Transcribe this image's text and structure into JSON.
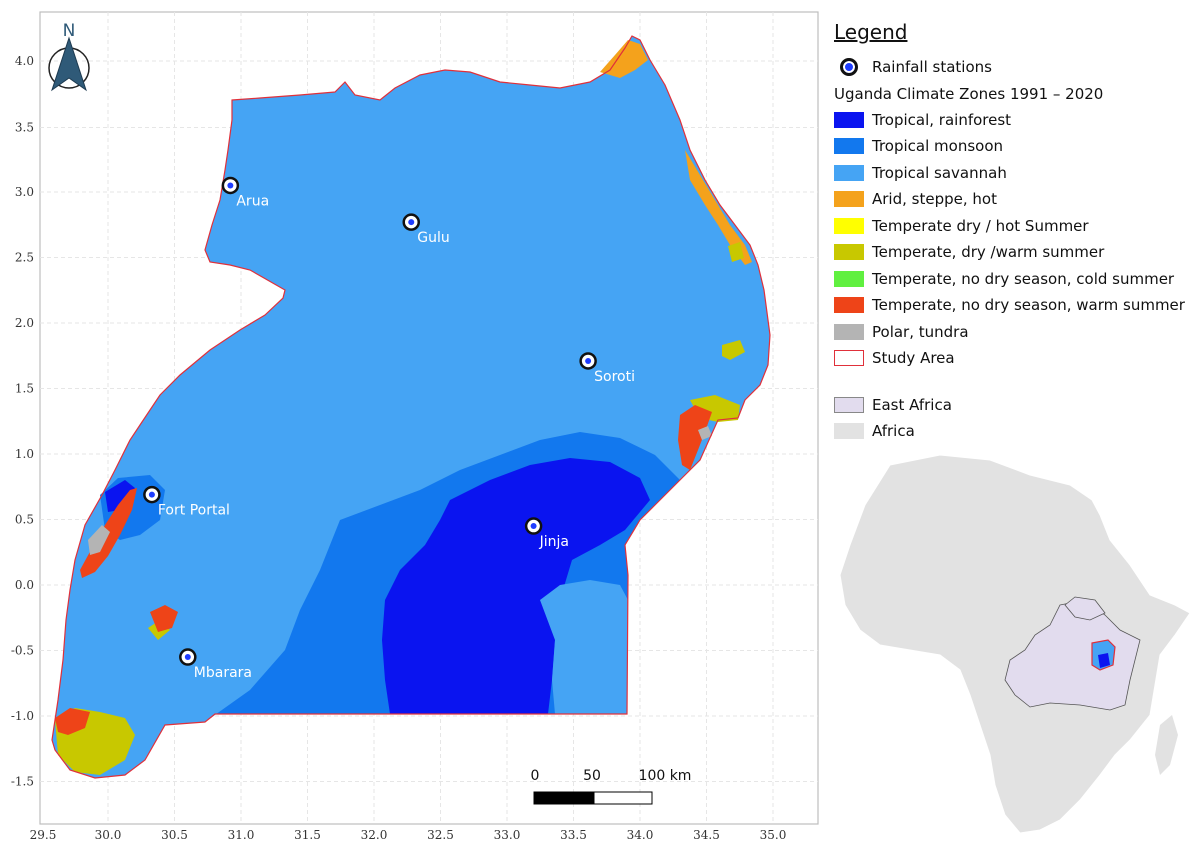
{
  "north_arrow": {
    "label": "N"
  },
  "x_axis": {
    "ticks": [
      "29.5",
      "30.0",
      "30.5",
      "31.0",
      "31.5",
      "32.0",
      "32.5",
      "33.0",
      "33.5",
      "34.0",
      "34.5",
      "35.0"
    ]
  },
  "y_axis": {
    "ticks": [
      "4.0",
      "3.5",
      "3.0",
      "2.5",
      "2.0",
      "1.5",
      "1.0",
      "0.5",
      "0.0",
      "-0.5",
      "-1.0",
      "-1.5"
    ]
  },
  "stations": [
    {
      "name": "Arua",
      "lon": 30.92,
      "lat": 3.05
    },
    {
      "name": "Gulu",
      "lon": 32.28,
      "lat": 2.77
    },
    {
      "name": "Soroti",
      "lon": 33.61,
      "lat": 1.71
    },
    {
      "name": "Fort Portal",
      "lon": 30.33,
      "lat": 0.69
    },
    {
      "name": "Jinja",
      "lon": 33.2,
      "lat": 0.45
    },
    {
      "name": "Mbarara",
      "lon": 30.6,
      "lat": -0.55
    }
  ],
  "scale_bar": {
    "labels": [
      "0",
      "50",
      "100 km"
    ]
  },
  "legend": {
    "title": "Legend",
    "stations_label": "Rainfall stations",
    "zones_title": "Uganda Climate Zones 1991 – 2020",
    "zones": [
      {
        "label": "Tropical, rainforest",
        "color": "#0a14f0"
      },
      {
        "label": "Tropical monsoon",
        "color": "#1278ee"
      },
      {
        "label": "Tropical savannah",
        "color": "#45a4f4"
      },
      {
        "label": "Arid, steppe, hot",
        "color": "#f4a21c"
      },
      {
        "label": "Temperate dry / hot Summer",
        "color": "#ffff00"
      },
      {
        "label": "Temperate, dry /warm summer",
        "color": "#c8c800"
      },
      {
        "label": "Temperate, no dry season, cold summer",
        "color": "#60f040"
      },
      {
        "label": "Temperate, no dry season, warm summer",
        "color": "#ee4418"
      },
      {
        "label": "Polar, tundra",
        "color": "#b4b4b4"
      }
    ],
    "study_area_label": "Study Area",
    "study_area_color": "#e0303a",
    "east_africa_label": "East Africa",
    "east_africa_color": "#e2dcee",
    "africa_label": "Africa",
    "africa_color": "#e2e2e2"
  }
}
